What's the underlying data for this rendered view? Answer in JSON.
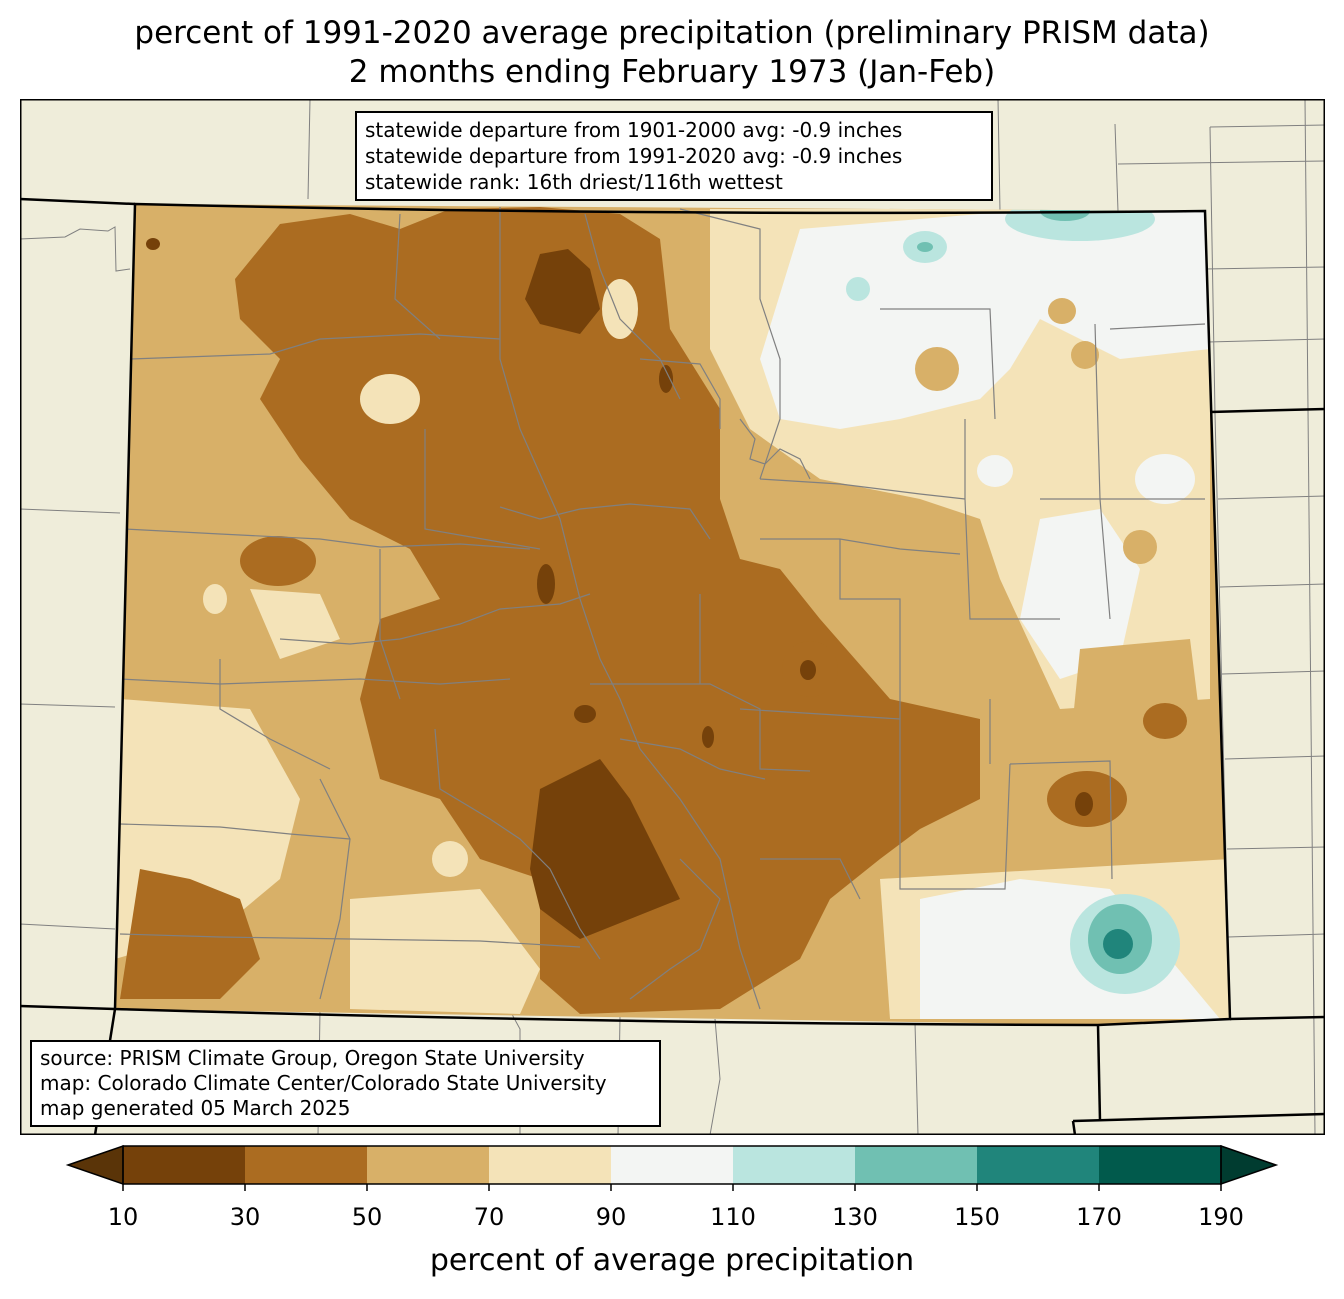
{
  "title": {
    "line1": "percent of 1991-2020 average precipitation (preliminary PRISM data)",
    "line2": "2 months ending February 1973 (Jan-Feb)"
  },
  "stats": {
    "line1": "statewide departure from 1901-2000 avg: -0.9 inches",
    "line2": "statewide departure from 1991-2020 avg: -0.9 inches",
    "line3": "statewide rank: 16th driest/116th wettest"
  },
  "credits": {
    "line1": "source: PRISM Climate Group, Oregon State University",
    "line2": "map: Colorado Climate Center/Colorado State University",
    "line3": "map generated 05 March 2025"
  },
  "legend": {
    "label": "percent of average precipitation",
    "ticks": [
      "10",
      "30",
      "50",
      "70",
      "90",
      "110",
      "130",
      "150",
      "170",
      "190"
    ],
    "under_color": "#5a3408",
    "over_color": "#003c30",
    "bins": [
      {
        "range": "10-30",
        "color": "#75410a"
      },
      {
        "range": "30-50",
        "color": "#ab6c21"
      },
      {
        "range": "50-70",
        "color": "#d8b068"
      },
      {
        "range": "70-90",
        "color": "#f4e3b8"
      },
      {
        "range": "90-110",
        "color": "#f3f5f3"
      },
      {
        "range": "110-130",
        "color": "#bae5df"
      },
      {
        "range": "130-150",
        "color": "#70c0b2"
      },
      {
        "range": "150-170",
        "color": "#20857b"
      },
      {
        "range": "170-190",
        "color": "#015a4c"
      }
    ]
  },
  "map_colors": {
    "background_land": "#efedda",
    "state_border": "#000000",
    "county_border": "#808080"
  }
}
